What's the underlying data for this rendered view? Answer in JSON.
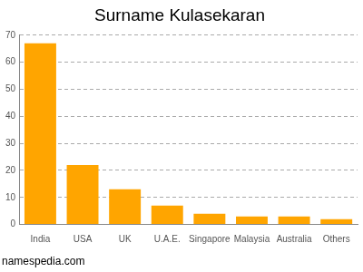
{
  "chart_data": {
    "type": "bar",
    "title": "Surname Kulasekaran",
    "source": "namespedia.com",
    "categories": [
      "India",
      "USA",
      "UK",
      "U.A.E.",
      "Singapore",
      "Malaysia",
      "Australia",
      "Others"
    ],
    "values": [
      67,
      22,
      13,
      7,
      4,
      3,
      3,
      2
    ],
    "color": "#ffa500",
    "ylim": [
      0,
      70
    ],
    "yticks": [
      0,
      10,
      20,
      30,
      40,
      50,
      60,
      70
    ],
    "grid": true
  }
}
